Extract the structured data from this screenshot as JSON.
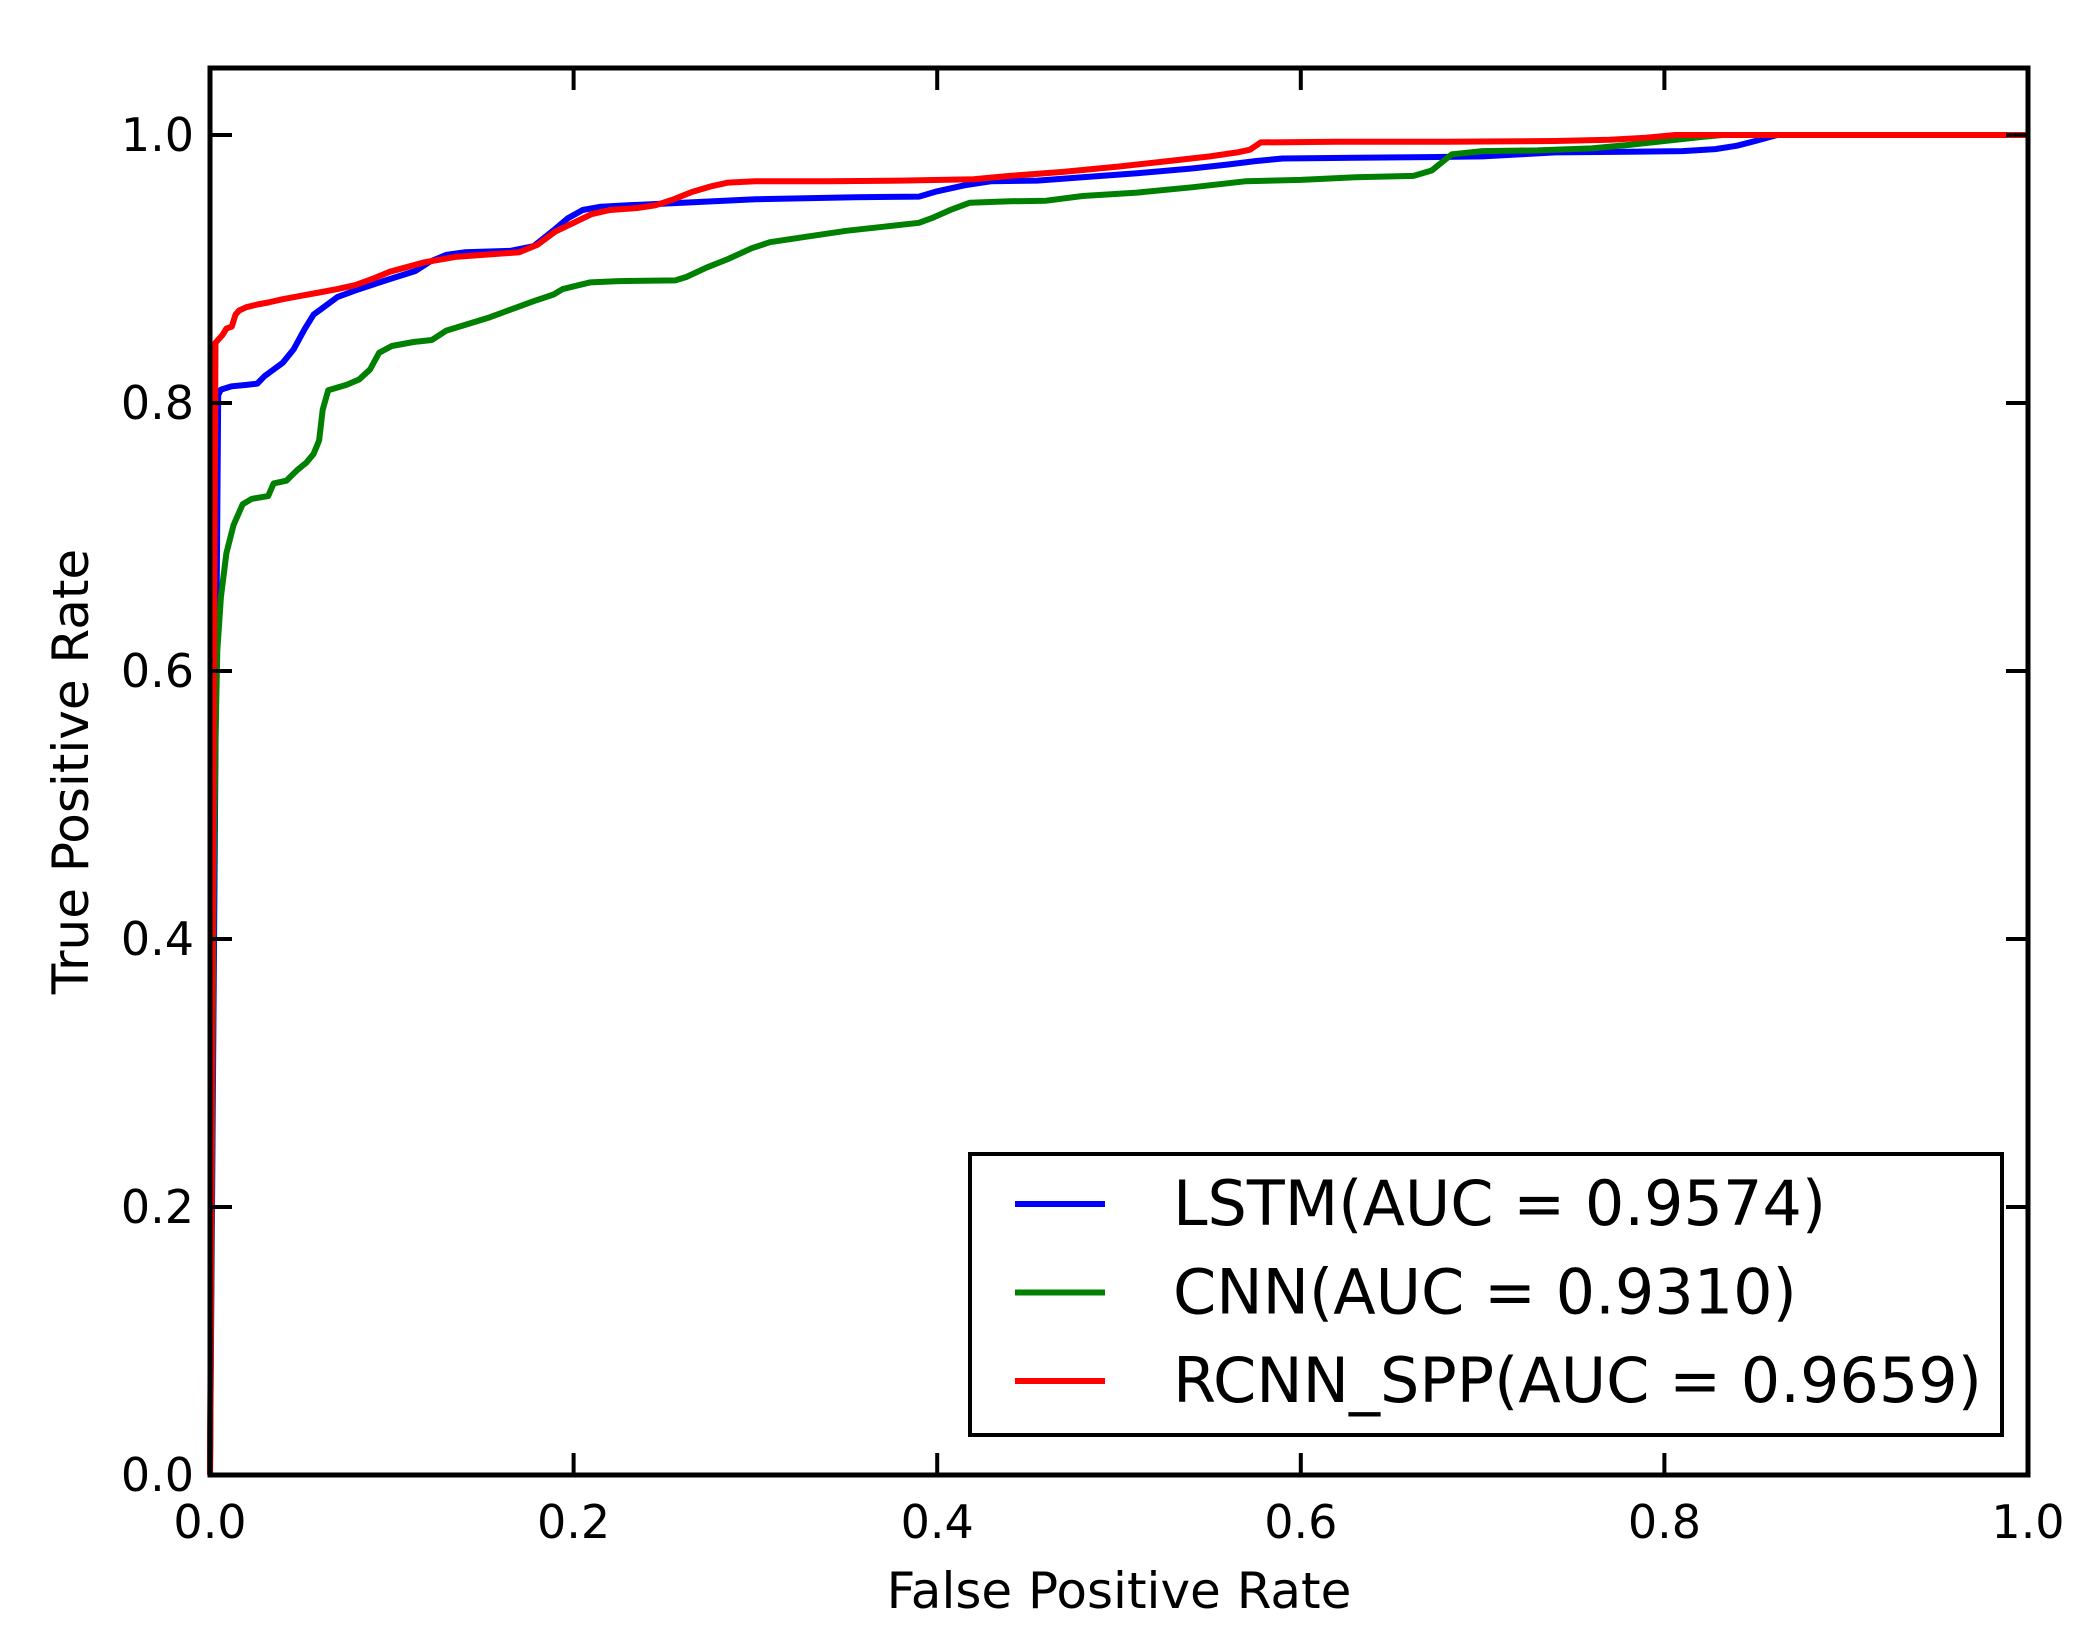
{
  "figure": {
    "background": "#ffffff",
    "axis_color": "#000000",
    "text_color": "#000000"
  },
  "chart_data": {
    "type": "line",
    "title": "",
    "xlabel": "False Positive Rate",
    "ylabel": "True Positive Rate",
    "xlim": [
      0.0,
      1.0
    ],
    "ylim": [
      0.0,
      1.05
    ],
    "grid": false,
    "x_ticks": [
      0.0,
      0.2,
      0.4,
      0.6,
      0.8,
      1.0
    ],
    "y_ticks": [
      0.0,
      0.2,
      0.4,
      0.6,
      0.8,
      1.0
    ],
    "x_tick_labels": [
      "0.0",
      "0.2",
      "0.4",
      "0.6",
      "0.8",
      "1.0"
    ],
    "y_tick_labels": [
      "0.0",
      "0.2",
      "0.4",
      "0.6",
      "0.8",
      "1.0"
    ],
    "legend_position": "lower right",
    "series": [
      {
        "name": "LSTM",
        "auc": 0.9574,
        "label": "LSTM(AUC = 0.9574)",
        "color": "#0000ff",
        "points": [
          [
            0.0,
            0.0
          ],
          [
            0.0045,
            0.806
          ],
          [
            0.006,
            0.81
          ],
          [
            0.012,
            0.8125
          ],
          [
            0.02,
            0.8135
          ],
          [
            0.026,
            0.8145
          ],
          [
            0.03,
            0.82
          ],
          [
            0.035,
            0.825
          ],
          [
            0.04,
            0.83
          ],
          [
            0.046,
            0.84
          ],
          [
            0.052,
            0.855
          ],
          [
            0.057,
            0.866
          ],
          [
            0.062,
            0.871
          ],
          [
            0.07,
            0.879
          ],
          [
            0.08,
            0.884
          ],
          [
            0.09,
            0.8885
          ],
          [
            0.099,
            0.8925
          ],
          [
            0.113,
            0.8985
          ],
          [
            0.121,
            0.9055
          ],
          [
            0.13,
            0.9105
          ],
          [
            0.14,
            0.9125
          ],
          [
            0.165,
            0.9135
          ],
          [
            0.178,
            0.917
          ],
          [
            0.19,
            0.93
          ],
          [
            0.197,
            0.938
          ],
          [
            0.205,
            0.944
          ],
          [
            0.215,
            0.9465
          ],
          [
            0.23,
            0.9475
          ],
          [
            0.26,
            0.9495
          ],
          [
            0.3,
            0.952
          ],
          [
            0.355,
            0.9535
          ],
          [
            0.39,
            0.954
          ],
          [
            0.4,
            0.958
          ],
          [
            0.415,
            0.9625
          ],
          [
            0.43,
            0.9655
          ],
          [
            0.455,
            0.966
          ],
          [
            0.48,
            0.9685
          ],
          [
            0.51,
            0.9715
          ],
          [
            0.54,
            0.975
          ],
          [
            0.56,
            0.978
          ],
          [
            0.575,
            0.9805
          ],
          [
            0.59,
            0.9825
          ],
          [
            0.63,
            0.983
          ],
          [
            0.67,
            0.9835
          ],
          [
            0.7,
            0.984
          ],
          [
            0.72,
            0.9855
          ],
          [
            0.74,
            0.987
          ],
          [
            0.78,
            0.9875
          ],
          [
            0.81,
            0.988
          ],
          [
            0.828,
            0.9895
          ],
          [
            0.84,
            0.992
          ],
          [
            0.85,
            0.9955
          ],
          [
            0.862,
            1.0
          ],
          [
            1.0,
            1.0
          ]
        ]
      },
      {
        "name": "CNN",
        "auc": 0.931,
        "label": "CNN(AUC = 0.9310)",
        "color": "#008000",
        "points": [
          [
            0.0,
            0.0
          ],
          [
            0.002,
            0.44
          ],
          [
            0.003,
            0.55
          ],
          [
            0.004,
            0.615
          ],
          [
            0.006,
            0.655
          ],
          [
            0.009,
            0.688
          ],
          [
            0.013,
            0.709
          ],
          [
            0.018,
            0.7245
          ],
          [
            0.023,
            0.7285
          ],
          [
            0.032,
            0.7305
          ],
          [
            0.035,
            0.74
          ],
          [
            0.042,
            0.742
          ],
          [
            0.048,
            0.75
          ],
          [
            0.053,
            0.7555
          ],
          [
            0.057,
            0.762
          ],
          [
            0.06,
            0.772
          ],
          [
            0.062,
            0.795
          ],
          [
            0.065,
            0.8095
          ],
          [
            0.075,
            0.8135
          ],
          [
            0.082,
            0.8175
          ],
          [
            0.088,
            0.825
          ],
          [
            0.093,
            0.8375
          ],
          [
            0.1,
            0.8425
          ],
          [
            0.112,
            0.8455
          ],
          [
            0.122,
            0.847
          ],
          [
            0.13,
            0.854
          ],
          [
            0.154,
            0.864
          ],
          [
            0.178,
            0.876
          ],
          [
            0.189,
            0.881
          ],
          [
            0.194,
            0.885
          ],
          [
            0.209,
            0.89
          ],
          [
            0.225,
            0.891
          ],
          [
            0.256,
            0.8915
          ],
          [
            0.262,
            0.894
          ],
          [
            0.273,
            0.901
          ],
          [
            0.285,
            0.9075
          ],
          [
            0.298,
            0.9155
          ],
          [
            0.308,
            0.92
          ],
          [
            0.33,
            0.9245
          ],
          [
            0.35,
            0.9285
          ],
          [
            0.37,
            0.9315
          ],
          [
            0.39,
            0.9345
          ],
          [
            0.398,
            0.9385
          ],
          [
            0.408,
            0.9445
          ],
          [
            0.418,
            0.9495
          ],
          [
            0.44,
            0.9505
          ],
          [
            0.46,
            0.951
          ],
          [
            0.48,
            0.9545
          ],
          [
            0.51,
            0.957
          ],
          [
            0.54,
            0.961
          ],
          [
            0.57,
            0.9655
          ],
          [
            0.6,
            0.9665
          ],
          [
            0.63,
            0.9685
          ],
          [
            0.662,
            0.9695
          ],
          [
            0.672,
            0.9735
          ],
          [
            0.683,
            0.9855
          ],
          [
            0.7,
            0.988
          ],
          [
            0.73,
            0.9885
          ],
          [
            0.76,
            0.99
          ],
          [
            0.78,
            0.9925
          ],
          [
            0.8,
            0.9955
          ],
          [
            0.82,
            0.9985
          ],
          [
            0.832,
            1.0
          ],
          [
            1.0,
            1.0
          ]
        ]
      },
      {
        "name": "RCNN_SPP",
        "auc": 0.9659,
        "label": "RCNN_SPP(AUC = 0.9659)",
        "color": "#ff0000",
        "points": [
          [
            0.0,
            0.0
          ],
          [
            0.003,
            0.845
          ],
          [
            0.005,
            0.848
          ],
          [
            0.007,
            0.851
          ],
          [
            0.009,
            0.8555
          ],
          [
            0.012,
            0.857
          ],
          [
            0.014,
            0.866
          ],
          [
            0.016,
            0.869
          ],
          [
            0.02,
            0.8715
          ],
          [
            0.026,
            0.8735
          ],
          [
            0.032,
            0.875
          ],
          [
            0.04,
            0.8775
          ],
          [
            0.05,
            0.88
          ],
          [
            0.06,
            0.8825
          ],
          [
            0.07,
            0.885
          ],
          [
            0.08,
            0.888
          ],
          [
            0.09,
            0.893
          ],
          [
            0.099,
            0.898
          ],
          [
            0.118,
            0.905
          ],
          [
            0.135,
            0.909
          ],
          [
            0.15,
            0.9105
          ],
          [
            0.17,
            0.9125
          ],
          [
            0.18,
            0.918
          ],
          [
            0.19,
            0.928
          ],
          [
            0.2,
            0.9345
          ],
          [
            0.21,
            0.941
          ],
          [
            0.22,
            0.944
          ],
          [
            0.235,
            0.9455
          ],
          [
            0.245,
            0.9475
          ],
          [
            0.255,
            0.952
          ],
          [
            0.265,
            0.9575
          ],
          [
            0.275,
            0.9615
          ],
          [
            0.285,
            0.9645
          ],
          [
            0.3,
            0.9655
          ],
          [
            0.34,
            0.9655
          ],
          [
            0.38,
            0.966
          ],
          [
            0.42,
            0.967
          ],
          [
            0.44,
            0.9695
          ],
          [
            0.47,
            0.9725
          ],
          [
            0.5,
            0.9765
          ],
          [
            0.53,
            0.981
          ],
          [
            0.55,
            0.984
          ],
          [
            0.565,
            0.987
          ],
          [
            0.572,
            0.989
          ],
          [
            0.578,
            0.9945
          ],
          [
            0.62,
            0.995
          ],
          [
            0.68,
            0.995
          ],
          [
            0.74,
            0.9955
          ],
          [
            0.77,
            0.9965
          ],
          [
            0.79,
            0.998
          ],
          [
            0.806,
            1.0
          ],
          [
            1.0,
            1.0
          ]
        ]
      }
    ]
  }
}
